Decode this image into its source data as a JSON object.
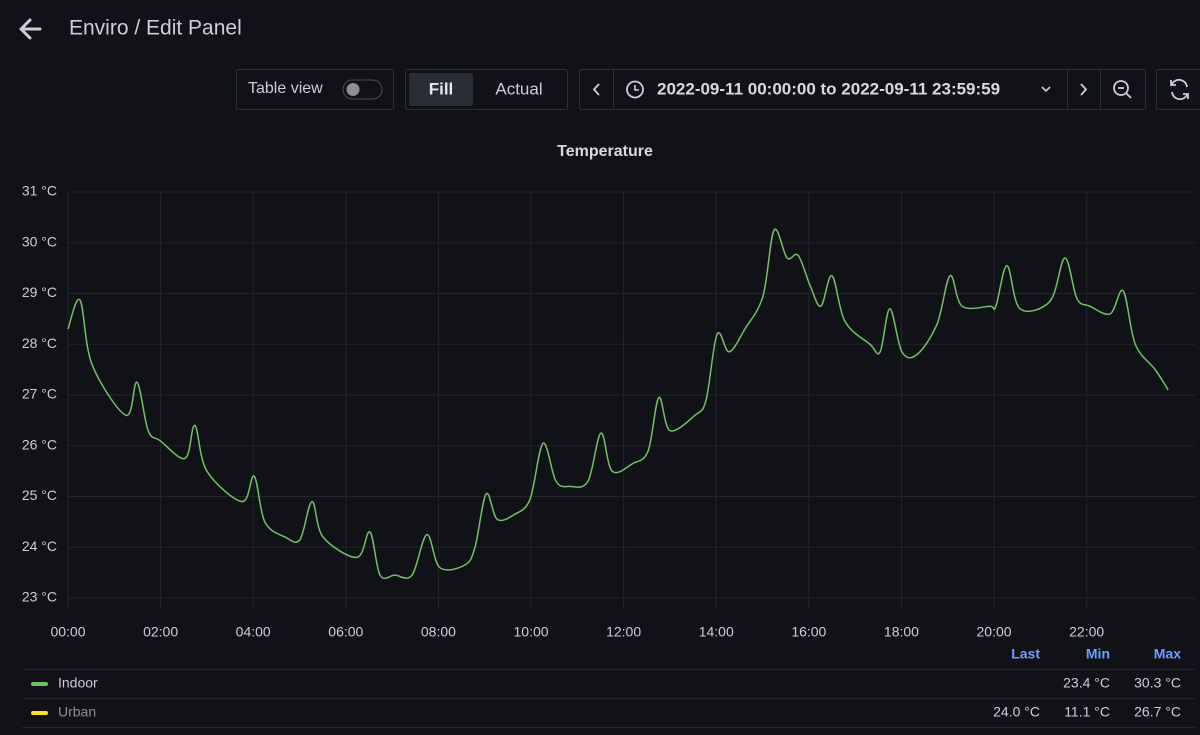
{
  "header": {
    "title": "Enviro / Edit Panel"
  },
  "toolbar": {
    "table_view": "Table view",
    "fill": "Fill",
    "actual": "Actual",
    "time_range": "2022-09-11 00:00:00 to 2022-09-11 23:59:59"
  },
  "chart_data": {
    "type": "line",
    "title": "Temperature",
    "x": [
      0,
      0.26,
      0.52,
      1.25,
      1.49,
      1.73,
      1.99,
      2.53,
      2.74,
      3.0,
      3.76,
      4.02,
      4.25,
      4.69,
      5.01,
      5.27,
      5.51,
      6.24,
      6.52,
      6.74,
      7.06,
      7.43,
      7.75,
      8.03,
      8.57,
      8.79,
      9.03,
      9.27,
      9.65,
      9.98,
      10.26,
      10.54,
      10.84,
      11.23,
      11.51,
      11.75,
      12.2,
      12.53,
      12.76,
      13.0,
      13.54,
      13.78,
      14.02,
      14.28,
      14.62,
      15.01,
      15.25,
      15.53,
      15.77,
      16.03,
      16.26,
      16.5,
      16.78,
      17.32,
      17.54,
      17.75,
      18.01,
      18.34,
      18.77,
      19.05,
      19.31,
      19.91,
      20.04,
      20.28,
      20.56,
      21.21,
      21.53,
      21.79,
      22.07,
      22.51,
      22.79,
      23.05,
      23.48,
      23.76
    ],
    "xlim": [
      0,
      24.34
    ],
    "xticks": [
      {
        "value": 0,
        "label": "00:00"
      },
      {
        "value": 2,
        "label": "02:00"
      },
      {
        "value": 4,
        "label": "04:00"
      },
      {
        "value": 6,
        "label": "06:00"
      },
      {
        "value": 8,
        "label": "08:00"
      },
      {
        "value": 10,
        "label": "10:00"
      },
      {
        "value": 12,
        "label": "12:00"
      },
      {
        "value": 14,
        "label": "14:00"
      },
      {
        "value": 16,
        "label": "16:00"
      },
      {
        "value": 18,
        "label": "18:00"
      },
      {
        "value": 20,
        "label": "20:00"
      },
      {
        "value": 22,
        "label": "22:00"
      }
    ],
    "ylim": [
      23,
      31
    ],
    "yticks": [
      {
        "value": 23,
        "label": "23 °C"
      },
      {
        "value": 24,
        "label": "24 °C"
      },
      {
        "value": 25,
        "label": "25 °C"
      },
      {
        "value": 26,
        "label": "26 °C"
      },
      {
        "value": 27,
        "label": "27 °C"
      },
      {
        "value": 28,
        "label": "28 °C"
      },
      {
        "value": 29,
        "label": "29 °C"
      },
      {
        "value": 30,
        "label": "30 °C"
      },
      {
        "value": 31,
        "label": "31 °C"
      }
    ],
    "grid": true,
    "legend_columns": [
      "Last",
      "Min",
      "Max"
    ],
    "series": [
      {
        "name": "Indoor",
        "color": "#73bf69",
        "values": [
          28.3,
          28.87,
          27.6,
          26.6,
          27.25,
          26.3,
          26.1,
          25.75,
          26.4,
          25.5,
          24.9,
          25.4,
          24.5,
          24.2,
          24.15,
          24.9,
          24.2,
          23.8,
          24.3,
          23.45,
          23.45,
          23.45,
          24.25,
          23.6,
          23.65,
          24.0,
          25.05,
          24.55,
          24.65,
          24.95,
          26.05,
          25.3,
          25.2,
          25.3,
          26.25,
          25.5,
          25.65,
          25.9,
          26.95,
          26.3,
          26.6,
          26.9,
          28.2,
          27.85,
          28.3,
          28.95,
          30.25,
          29.7,
          29.75,
          29.15,
          28.75,
          29.35,
          28.45,
          28.0,
          27.85,
          28.7,
          27.85,
          27.8,
          28.4,
          29.35,
          28.75,
          28.75,
          28.75,
          29.55,
          28.7,
          28.85,
          29.7,
          28.9,
          28.75,
          28.6,
          29.05,
          28.0,
          27.5,
          27.1
        ],
        "stats": [
          null,
          {
            "value": 23.4,
            "label": "23.4 °C"
          },
          {
            "value": 30.3,
            "label": "30.3 °C"
          }
        ]
      },
      {
        "name": "Urban",
        "color": "#fade2a",
        "stats": [
          {
            "value": 24.0,
            "label": "24.0 °C"
          },
          {
            "value": 11.1,
            "label": "11.1 °C"
          },
          {
            "value": 26.7,
            "label": "26.7 °C"
          }
        ]
      }
    ]
  }
}
